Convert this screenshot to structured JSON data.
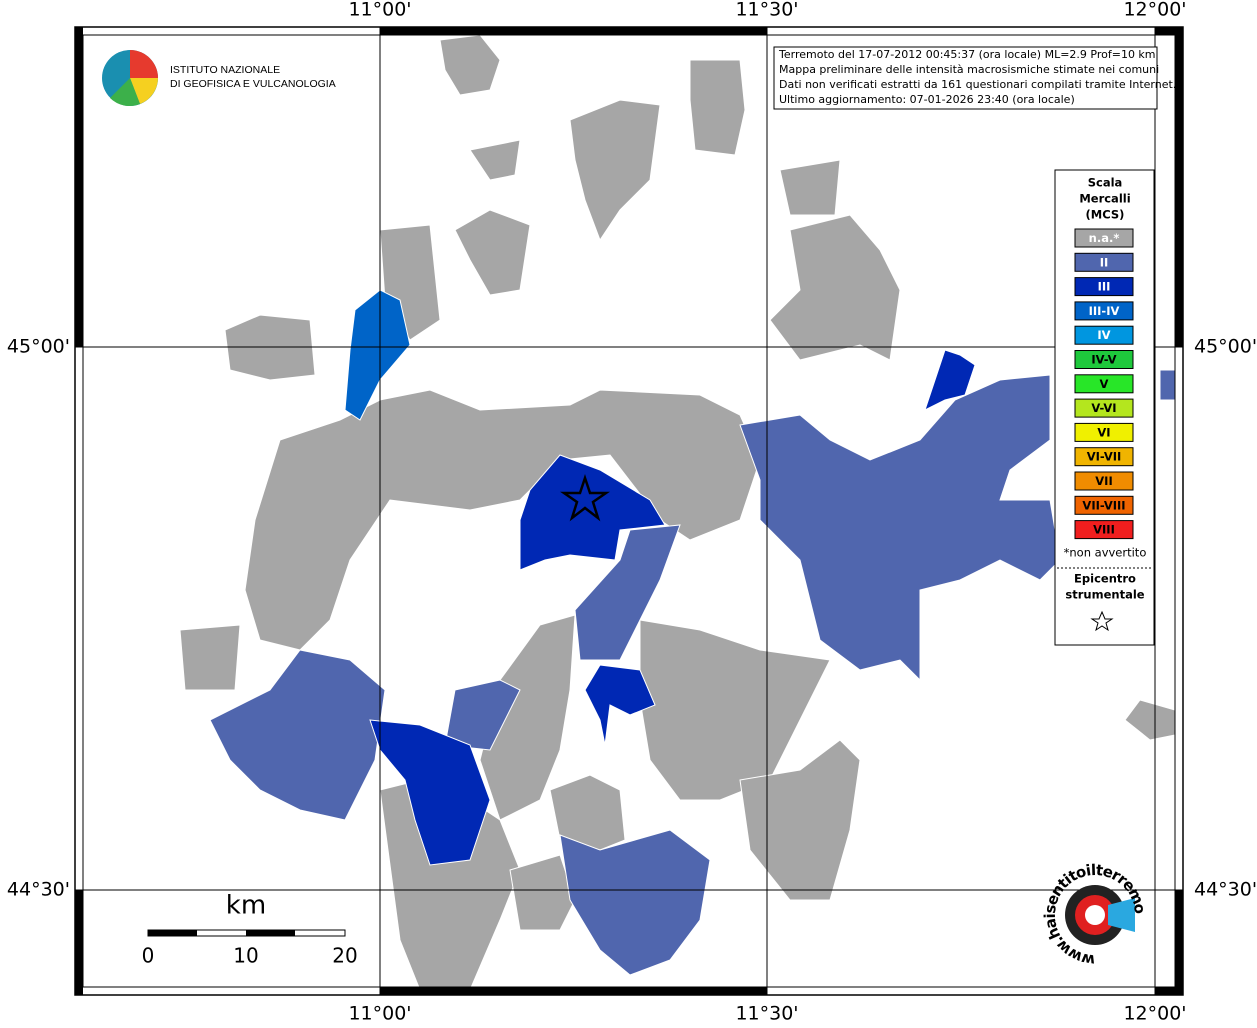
{
  "header": {
    "lines": [
      "Terremoto del 17-07-2012 00:45:37 (ora locale) ML=2.9 Prof=10 km",
      "Mappa preliminare delle intensità macrosismiche stimate nei comuni",
      "Dati non verificati estratti da 161 questionari compilati tramite Internet.",
      "Ultimo aggiornamento: 07-01-2026 23:40 (ora locale)"
    ]
  },
  "logo": {
    "lines": [
      "ISTITUTO NAZIONALE",
      "DI GEOFISICA E VULCANOLOGIA"
    ]
  },
  "grid_labels": {
    "lon": [
      "11°00'",
      "11°30'",
      "12°00'"
    ],
    "lat": [
      "45°00'",
      "44°30'"
    ]
  },
  "legend": {
    "title": [
      "Scala",
      "Mercalli",
      "(MCS)"
    ],
    "classes": [
      {
        "label": "n.a.*",
        "color": "#a6a6a6"
      },
      {
        "label": "II",
        "color": "#5066ae"
      },
      {
        "label": "III",
        "color": "#0028b4"
      },
      {
        "label": "III-IV",
        "color": "#0064c8"
      },
      {
        "label": "IV",
        "color": "#0096e0"
      },
      {
        "label": "IV-V",
        "color": "#1ec83c"
      },
      {
        "label": "V",
        "color": "#28e628"
      },
      {
        "label": "V-VI",
        "color": "#b4e61e"
      },
      {
        "label": "VI",
        "color": "#f0f000"
      },
      {
        "label": "VI-VII",
        "color": "#f0b400"
      },
      {
        "label": "VII",
        "color": "#f08c00"
      },
      {
        "label": "VII-VIII",
        "color": "#f06400"
      },
      {
        "label": "VIII",
        "color": "#f01e1e"
      }
    ],
    "note": "*non avvertito",
    "epicenter": [
      "Epicentro",
      "strumentale"
    ]
  },
  "scale_bar": {
    "unit": "km",
    "ticks": [
      0,
      10,
      20
    ]
  },
  "watermark": "www.haisentitoilterremoto.it"
}
